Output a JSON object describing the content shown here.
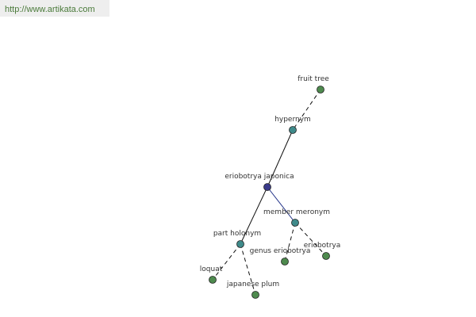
{
  "header": {
    "url": "http://www.artikata.com"
  },
  "nodes": [
    {
      "label": "fruit tree"
    },
    {
      "label": "hypernym"
    },
    {
      "label": "eriobotrya japonica"
    },
    {
      "label": "member meronym"
    },
    {
      "label": "part holonym"
    },
    {
      "label": "genus eriobotrya"
    },
    {
      "label": "eriobotrya"
    },
    {
      "label": "loquat"
    },
    {
      "label": "japanese plum"
    }
  ]
}
